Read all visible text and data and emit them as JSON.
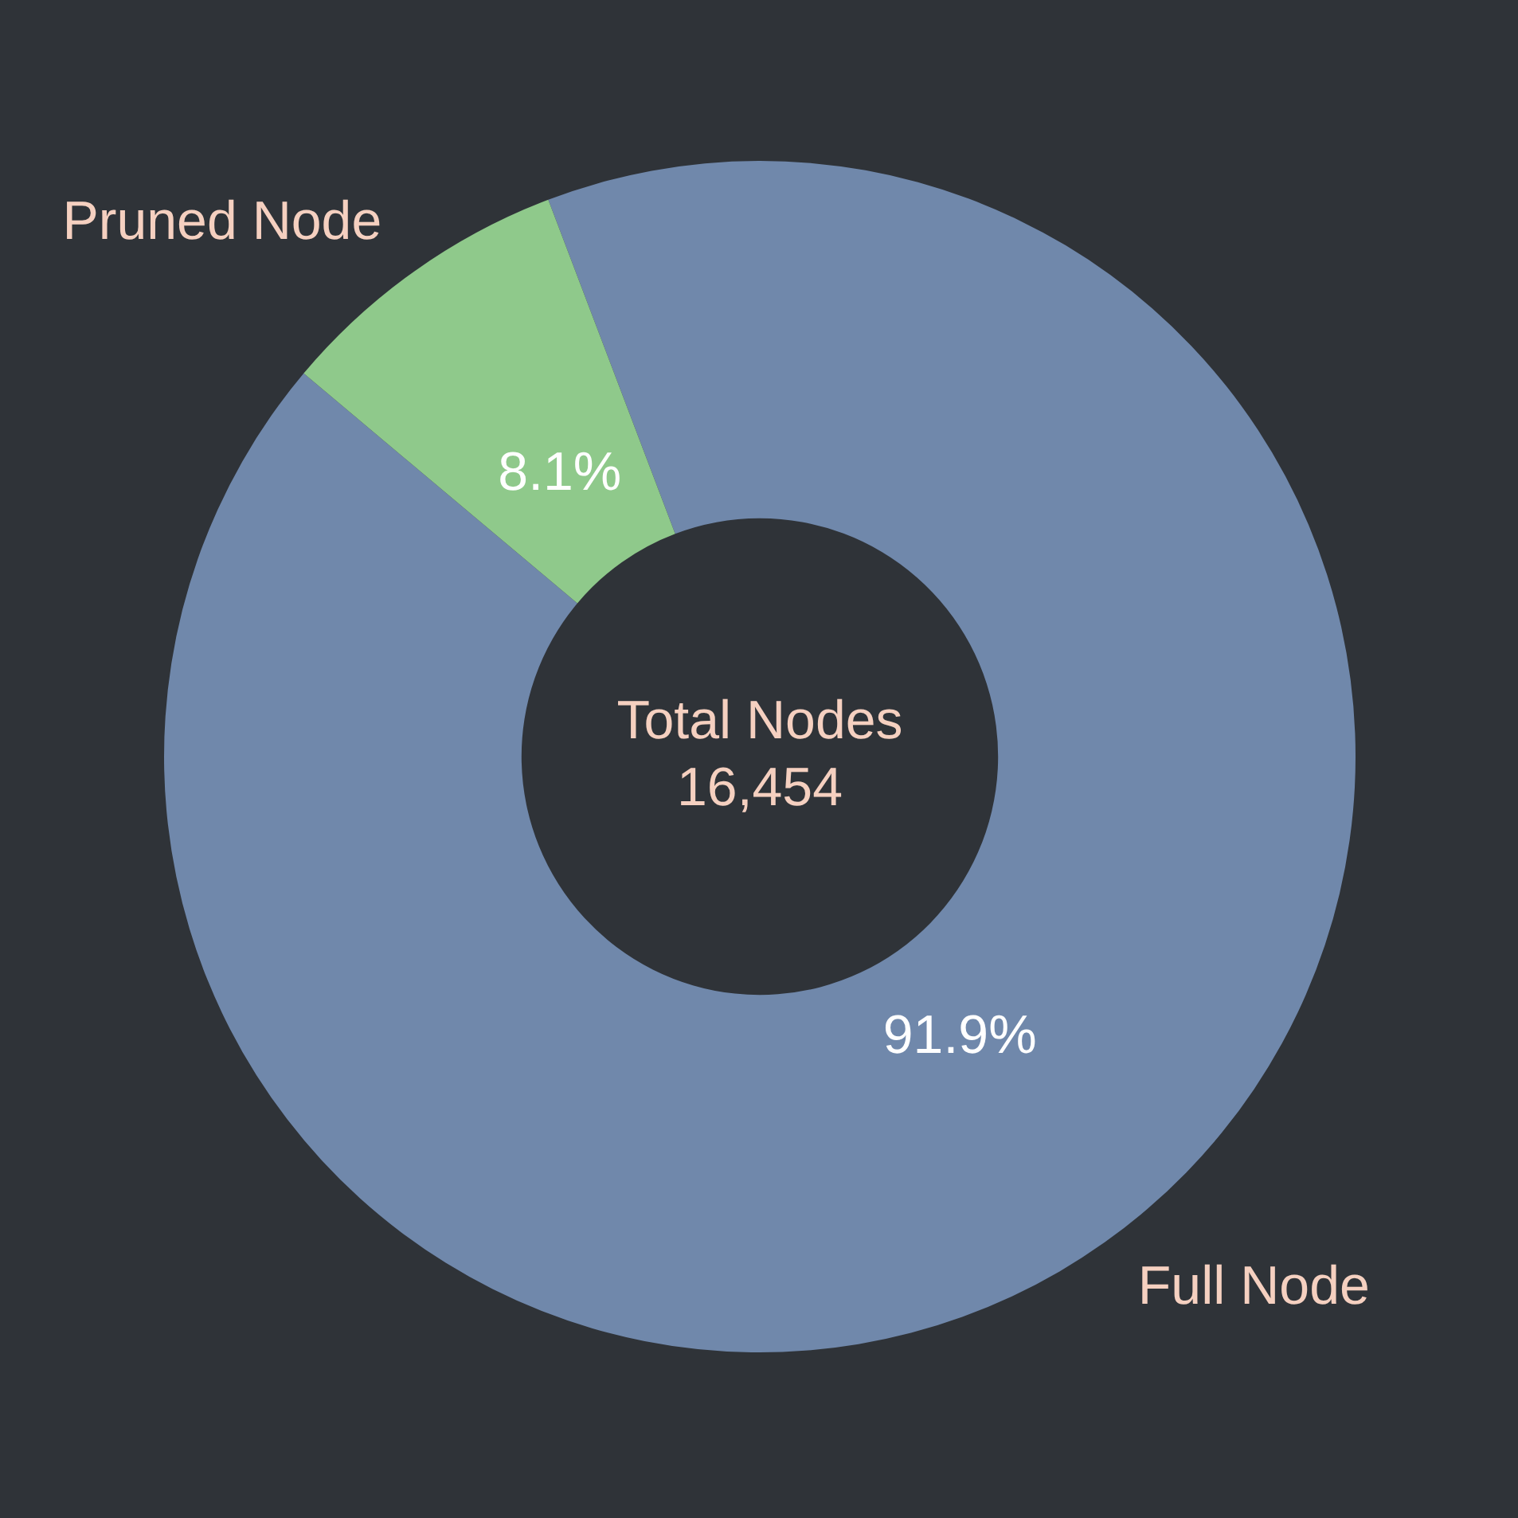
{
  "chart_data": {
    "type": "donut",
    "categories": [
      "Full Node",
      "Pruned Node"
    ],
    "values": [
      91.9,
      8.1
    ],
    "colors": [
      "#7088ab",
      "#8fc98b"
    ],
    "value_labels": [
      "91.9%",
      "8.1%"
    ],
    "annotations": [
      "Total Nodes",
      "16,454"
    ]
  }
}
